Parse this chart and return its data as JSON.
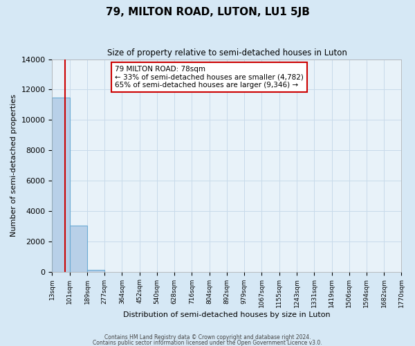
{
  "title": "79, MILTON ROAD, LUTON, LU1 5JB",
  "subtitle": "Size of property relative to semi-detached houses in Luton",
  "xlabel": "Distribution of semi-detached houses by size in Luton",
  "ylabel": "Number of semi-detached properties",
  "bin_edges": [
    13,
    101,
    189,
    277,
    364,
    452,
    540,
    628,
    716,
    804,
    892,
    979,
    1067,
    1155,
    1243,
    1331,
    1419,
    1506,
    1594,
    1682,
    1770
  ],
  "bin_heights": [
    11450,
    3050,
    100,
    0,
    0,
    0,
    0,
    0,
    0,
    0,
    0,
    0,
    0,
    0,
    0,
    0,
    0,
    0,
    0,
    0
  ],
  "bar_color": "#b8d0e8",
  "bar_edge_color": "#6aaad4",
  "property_size": 78,
  "property_label": "79 MILTON ROAD: 78sqm",
  "pct_smaller": 33,
  "pct_larger": 65,
  "n_smaller": 4782,
  "n_larger": 9346,
  "annotation_box_color": "#ffffff",
  "annotation_box_edge_color": "#cc0000",
  "vline_color": "#cc0000",
  "ylim": [
    0,
    14000
  ],
  "yticks": [
    0,
    2000,
    4000,
    6000,
    8000,
    10000,
    12000,
    14000
  ],
  "grid_color": "#c8daea",
  "bg_color": "#d6e8f5",
  "plot_bg_color": "#e8f2f9",
  "footer_line1": "Contains HM Land Registry data © Crown copyright and database right 2024.",
  "footer_line2": "Contains public sector information licensed under the Open Government Licence v3.0."
}
